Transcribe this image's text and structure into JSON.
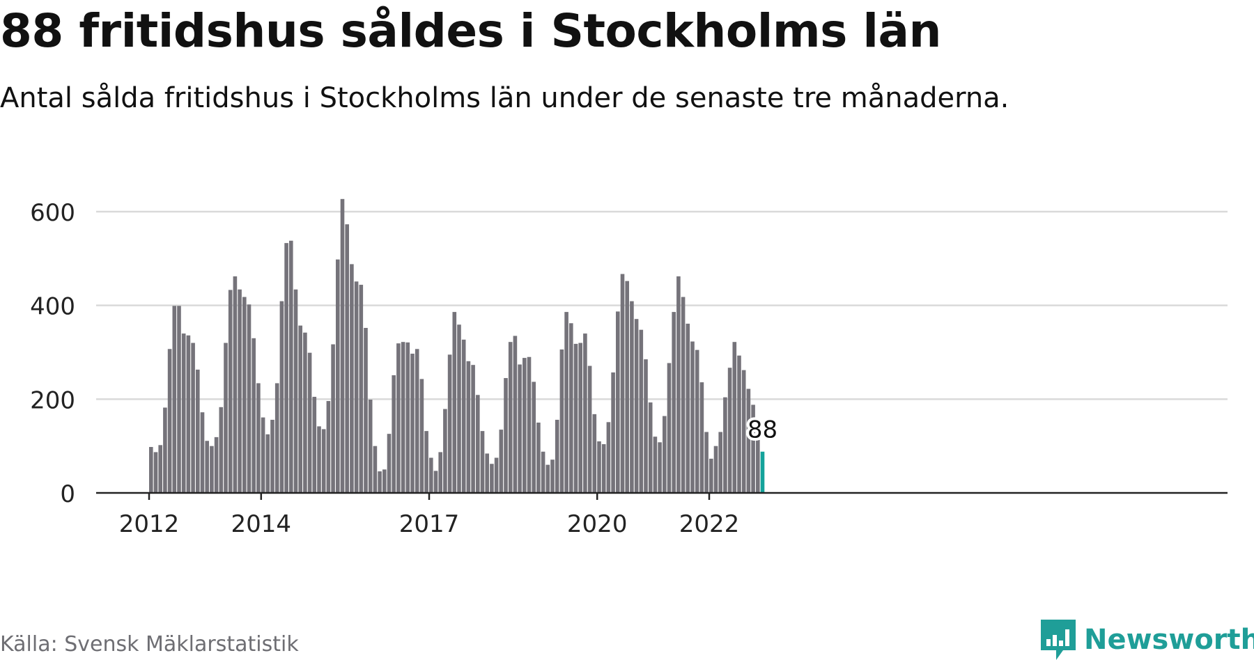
{
  "header": {
    "title": "88 fritidshus såldes i Stockholms län",
    "subtitle": "Antal sålda fritidshus i Stockholms län under de senaste tre månaderna."
  },
  "footer": {
    "source": "Källa: Svensk Mäklarstatistik",
    "brand": "Newsworthy",
    "brand_icon": "newsworthy-logo-icon"
  },
  "colors": {
    "bar": "#75737a",
    "highlight": "#14a39b",
    "grid": "#d9d9d9",
    "axis": "#222222",
    "brand": "#1f9e98",
    "text": "#111111",
    "source": "#6e6e73"
  },
  "chart_data": {
    "type": "bar",
    "ylim": [
      0,
      630
    ],
    "yticks": [
      0,
      200,
      400,
      600
    ],
    "xticks": [
      "2012",
      "2014",
      "2017",
      "2020",
      "2022"
    ],
    "grid": true,
    "highlight_label": "88",
    "values": [
      98,
      87,
      102,
      182,
      307,
      399,
      399,
      340,
      336,
      320,
      263,
      172,
      111,
      100,
      119,
      183,
      320,
      433,
      462,
      434,
      418,
      402,
      330,
      234,
      161,
      125,
      156,
      234,
      409,
      533,
      538,
      434,
      357,
      342,
      299,
      205,
      142,
      136,
      196,
      317,
      498,
      627,
      573,
      488,
      451,
      444,
      352,
      199,
      100,
      46,
      50,
      126,
      251,
      319,
      322,
      321,
      297,
      307,
      243,
      132,
      75,
      47,
      87,
      179,
      295,
      386,
      359,
      327,
      281,
      273,
      209,
      132,
      84,
      62,
      75,
      135,
      245,
      322,
      335,
      274,
      288,
      290,
      237,
      150,
      88,
      60,
      71,
      156,
      306,
      386,
      362,
      318,
      320,
      340,
      271,
      168,
      110,
      104,
      151,
      257,
      387,
      467,
      452,
      409,
      371,
      348,
      285,
      193,
      120,
      108,
      164,
      277,
      386,
      462,
      418,
      361,
      323,
      305,
      236,
      130,
      73,
      100,
      130,
      204,
      267,
      322,
      293,
      262,
      222,
      188,
      113,
      88
    ]
  }
}
